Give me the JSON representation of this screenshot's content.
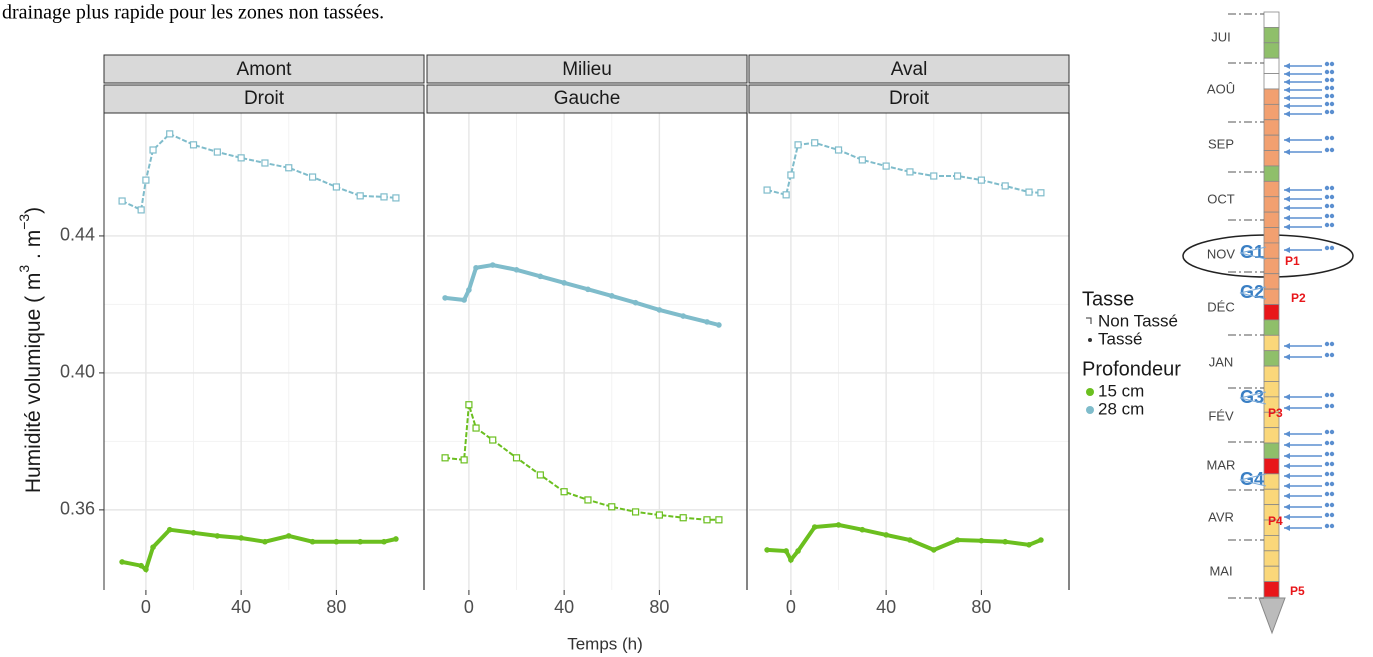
{
  "caption": "drainage plus rapide pour les zones non tassées.",
  "chart_data": {
    "type": "scatter",
    "ylabel": [
      "Humidité volumique ( m",
      "3",
      " . m",
      "−3",
      ")"
    ],
    "xlabel": "Temps (h)",
    "xlim": [
      -17.6,
      116.8
    ],
    "ylim": [
      0.3366,
      0.4759
    ],
    "xticks": [
      0,
      40,
      80
    ],
    "yticks": [
      0.36,
      {
        "value": 0.4,
        "label": "0.40"
      },
      0.44
    ],
    "grid": true,
    "legend": [
      {
        "title": "Tasse",
        "items": [
          {
            "label": "Non Tassé",
            "marker": "open-square"
          },
          {
            "label": "Tassé",
            "marker": "dot"
          }
        ]
      },
      {
        "title": "Profondeur",
        "items": [
          {
            "label": "15 cm",
            "color": "#6bbf1f"
          },
          {
            "label": "28 cm",
            "color": "#7fbccb"
          }
        ]
      }
    ],
    "facets": [
      {
        "strip": [
          "Amont",
          "Droit"
        ],
        "x": [
          -10,
          -2,
          0,
          3,
          10,
          20,
          30,
          40,
          50,
          60,
          70,
          80,
          90,
          100,
          105
        ],
        "series": [
          {
            "color": "#7fbccb",
            "marker": "open-square",
            "values": [
              0.4502,
              0.4476,
              0.4563,
              0.4651,
              0.4698,
              0.4666,
              0.4645,
              0.4628,
              0.4613,
              0.4599,
              0.4572,
              0.4543,
              0.4517,
              0.4514,
              0.4511
            ]
          },
          {
            "color": "#6bbf1f",
            "marker": "dot",
            "values": [
              0.3448,
              0.3437,
              0.3426,
              0.3491,
              0.3542,
              0.3533,
              0.3524,
              0.3518,
              0.3507,
              0.3524,
              0.3507,
              0.3507,
              0.3507,
              0.3507,
              0.3515
            ]
          }
        ]
      },
      {
        "strip": [
          "Milieu",
          "Gauche"
        ],
        "x": [
          -10,
          -2,
          0,
          3,
          10,
          20,
          30,
          40,
          50,
          60,
          70,
          80,
          90,
          100,
          105
        ],
        "series": [
          {
            "color": "#7fbccb",
            "marker": "dot",
            "values": [
              0.4219,
              0.4213,
              0.4242,
              0.4307,
              0.4315,
              0.4301,
              0.4282,
              0.4263,
              0.4244,
              0.4225,
              0.4205,
              0.4184,
              0.4166,
              0.4149,
              0.414
            ]
          },
          {
            "color": "#6bbf1f",
            "marker": "open-square",
            "values": [
              0.3752,
              0.3746,
              0.3907,
              0.3839,
              0.3804,
              0.3752,
              0.3702,
              0.3653,
              0.3629,
              0.3609,
              0.3594,
              0.3585,
              0.3577,
              0.3571,
              0.3571
            ]
          }
        ]
      },
      {
        "strip": [
          "Aval",
          "Droit"
        ],
        "x": [
          -10,
          -2,
          0,
          3,
          10,
          20,
          30,
          40,
          50,
          60,
          70,
          80,
          90,
          100,
          105
        ],
        "series": [
          {
            "color": "#7fbccb",
            "marker": "open-square",
            "values": [
              0.4534,
              0.452,
              0.4578,
              0.4666,
              0.4672,
              0.4651,
              0.4622,
              0.4604,
              0.4587,
              0.4575,
              0.4575,
              0.4563,
              0.4546,
              0.4528,
              0.4526
            ]
          },
          {
            "color": "#6bbf1f",
            "marker": "dot",
            "values": [
              0.3483,
              0.348,
              0.3454,
              0.348,
              0.355,
              0.3556,
              0.3542,
              0.3527,
              0.3512,
              0.3483,
              0.3512,
              0.351,
              0.3507,
              0.3498,
              0.3512
            ]
          }
        ]
      }
    ]
  },
  "timeline": {
    "months": [
      "JUI",
      "AOÛ",
      "SEP",
      "OCT",
      "NOV",
      "DÉC",
      "JAN",
      "FÉV",
      "MAR",
      "AVR",
      "MAI"
    ],
    "groups": [
      "G1",
      "G2",
      "G3",
      "G4"
    ],
    "points": [
      "P1",
      "P2",
      "P3",
      "P4",
      "P5"
    ]
  }
}
